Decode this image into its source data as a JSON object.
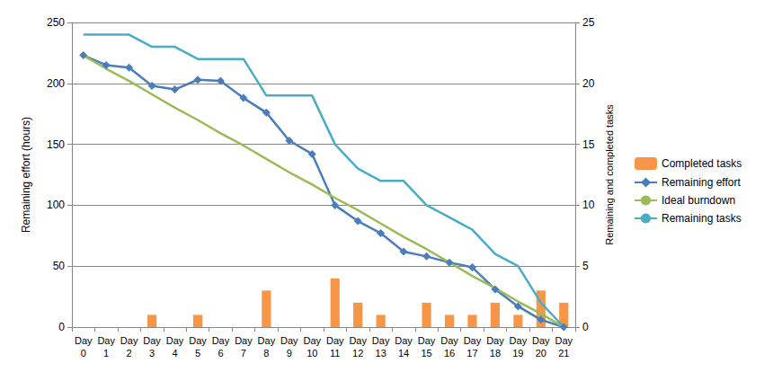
{
  "chart_data": {
    "type": "line",
    "categories": [
      "Day 0",
      "Day 1",
      "Day 2",
      "Day 3",
      "Day 4",
      "Day 5",
      "Day 6",
      "Day 7",
      "Day 8",
      "Day 9",
      "Day 10",
      "Day 11",
      "Day 12",
      "Day 13",
      "Day 14",
      "Day 15",
      "Day 16",
      "Day 17",
      "Day 18",
      "Day 19",
      "Day 20",
      "Day 21"
    ],
    "y_label": "Remaining effort (hours)",
    "y2_label": "Remaining and completed tasks",
    "ylim": [
      0,
      250
    ],
    "yticks": [
      0,
      50,
      100,
      150,
      200,
      250
    ],
    "y2lim": [
      0,
      25
    ],
    "y2ticks": [
      0,
      5,
      10,
      15,
      20,
      25
    ],
    "grid": true,
    "legend": "right",
    "series": [
      {
        "name": "Completed tasks",
        "type": "bar",
        "axis": "y2",
        "color": "#f79646",
        "values": [
          0,
          0,
          0,
          1,
          0,
          1,
          0,
          0,
          3,
          0,
          0,
          4,
          2,
          1,
          0,
          2,
          1,
          1,
          2,
          1,
          3,
          2
        ]
      },
      {
        "name": "Remaining effort",
        "type": "line",
        "color": "#4a7ebb",
        "marker": "diamond",
        "line_style": "solid",
        "values": [
          223,
          215,
          213,
          198,
          195,
          203,
          202,
          188,
          176,
          153,
          142,
          100,
          87,
          77,
          62,
          58,
          53,
          49,
          31,
          17,
          6,
          0
        ]
      },
      {
        "name": "Ideal burndown",
        "type": "line",
        "color": "#9bbb59",
        "marker": "none",
        "line_style": "solid",
        "values": [
          223,
          212,
          202,
          191,
          180,
          170,
          159,
          149,
          138,
          127,
          117,
          106,
          96,
          85,
          74,
          64,
          53,
          42,
          32,
          21,
          11,
          0
        ]
      },
      {
        "name": "Remaining tasks",
        "type": "line",
        "axis": "y2",
        "color": "#4bacc6",
        "marker": "none",
        "line_style": "solid",
        "values": [
          24,
          24,
          24,
          23,
          23,
          22,
          22,
          22,
          19,
          19,
          19,
          15,
          13,
          12,
          12,
          10,
          9,
          8,
          6,
          5,
          2,
          0
        ]
      }
    ]
  }
}
